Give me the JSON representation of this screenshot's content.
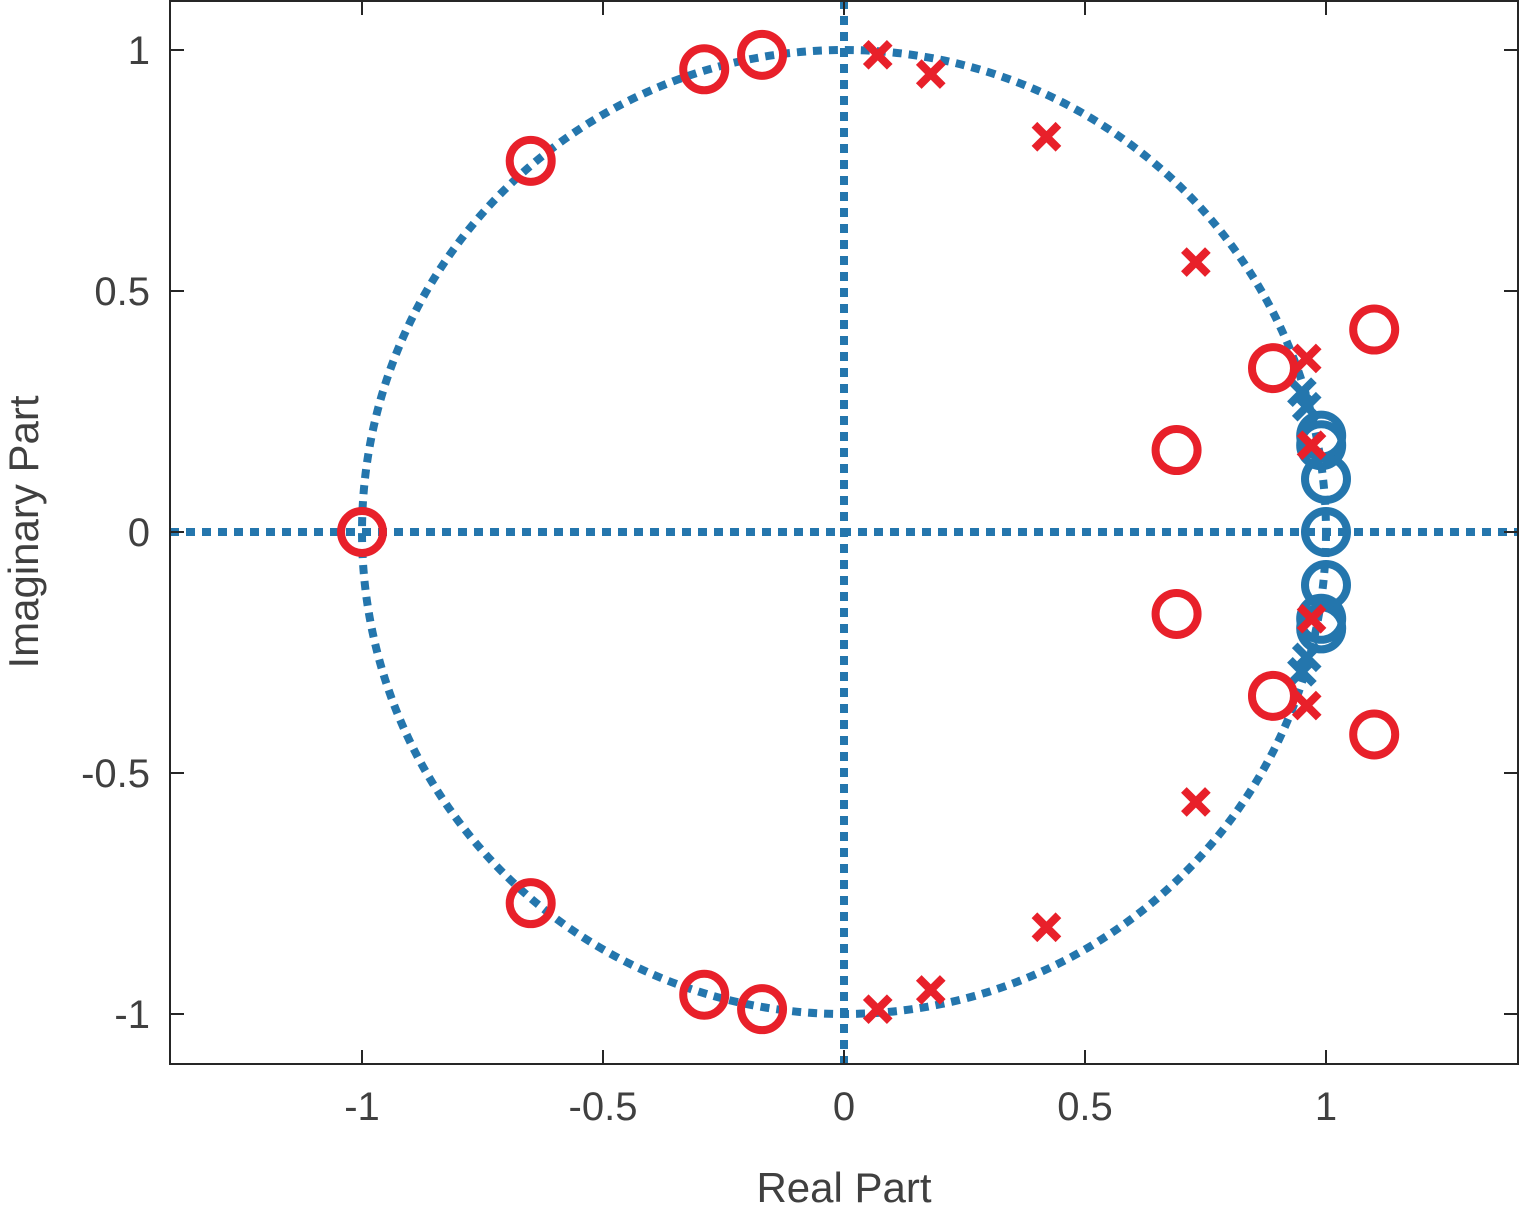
{
  "chart_data": {
    "type": "scatter",
    "title": "",
    "xlabel": "Real Part",
    "ylabel": "Imaginary Part",
    "xlim": [
      -1.4,
      1.4
    ],
    "ylim": [
      -1.1,
      1.1
    ],
    "grid": false,
    "legend": "none",
    "xticks": [
      {
        "value": -1,
        "label": "-1"
      },
      {
        "value": -0.5,
        "label": "-0.5"
      },
      {
        "value": 0,
        "label": "0"
      },
      {
        "value": 0.5,
        "label": "0.5"
      },
      {
        "value": 1,
        "label": "1"
      }
    ],
    "yticks": [
      {
        "value": -1,
        "label": "-1"
      },
      {
        "value": -0.5,
        "label": "-0.5"
      },
      {
        "value": 0,
        "label": "0"
      },
      {
        "value": 0.5,
        "label": "0.5"
      },
      {
        "value": 1,
        "label": "1"
      }
    ],
    "reference_lines": {
      "unit_circle": true,
      "real_axis": true,
      "imaginary_axis": true,
      "color": "#2476ad",
      "style": "dotted"
    },
    "series": [
      {
        "marker": "o",
        "color": "#2476ad",
        "points": [
          [
            0.99,
            0.2
          ],
          [
            0.99,
            0.18
          ],
          [
            1.0,
            0.11
          ],
          [
            1.0,
            0.0
          ],
          [
            1.0,
            -0.11
          ],
          [
            0.99,
            -0.18
          ],
          [
            0.99,
            -0.2
          ]
        ]
      },
      {
        "marker": "x",
        "color": "#2476ad",
        "points": [
          [
            0.95,
            0.29
          ],
          [
            0.96,
            0.26
          ],
          [
            0.96,
            -0.26
          ],
          [
            0.95,
            -0.29
          ]
        ]
      },
      {
        "marker": "o",
        "color": "#e8202a",
        "points": [
          [
            -1.0,
            0.0
          ],
          [
            -0.65,
            0.77
          ],
          [
            -0.65,
            -0.77
          ],
          [
            -0.29,
            0.96
          ],
          [
            -0.29,
            -0.96
          ],
          [
            -0.17,
            0.99
          ],
          [
            -0.17,
            -0.99
          ],
          [
            0.69,
            0.17
          ],
          [
            0.69,
            -0.17
          ],
          [
            0.89,
            0.34
          ],
          [
            0.89,
            -0.34
          ],
          [
            1.1,
            0.42
          ],
          [
            1.1,
            -0.42
          ]
        ]
      },
      {
        "marker": "x",
        "color": "#e8202a",
        "points": [
          [
            0.07,
            0.99
          ],
          [
            0.07,
            -0.99
          ],
          [
            0.18,
            0.95
          ],
          [
            0.18,
            -0.95
          ],
          [
            0.42,
            0.82
          ],
          [
            0.42,
            -0.82
          ],
          [
            0.73,
            0.56
          ],
          [
            0.73,
            -0.56
          ],
          [
            0.96,
            0.36
          ],
          [
            0.96,
            -0.36
          ],
          [
            0.97,
            0.18
          ],
          [
            0.97,
            -0.18
          ]
        ]
      }
    ]
  }
}
